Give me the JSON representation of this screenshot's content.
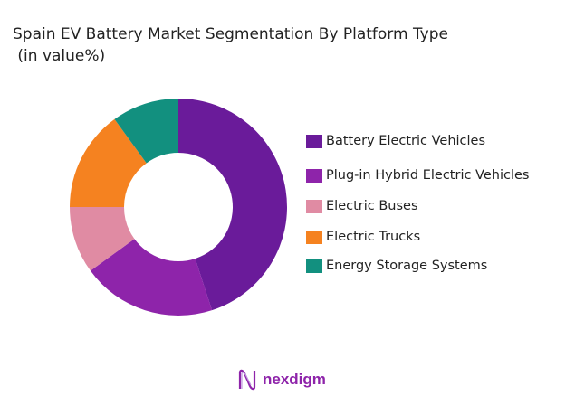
{
  "chart_data": {
    "type": "pie",
    "donut": true,
    "title": "Spain EV Battery Market Segmentation By Platform Type\n (in value%)",
    "legend_placement": "right",
    "categories": [
      "Battery Electric Vehicles",
      "Plug-in Hybrid Electric Vehicles",
      "Electric Buses",
      "Electric Trucks",
      "Energy Storage Systems"
    ],
    "values": [
      45,
      20,
      10,
      15,
      10
    ],
    "colors": [
      "#6a1b9a",
      "#8e24aa",
      "#e08ba3",
      "#f58220",
      "#12907f"
    ]
  },
  "brand": {
    "name": "nexdigm",
    "color": "#8e24aa"
  }
}
